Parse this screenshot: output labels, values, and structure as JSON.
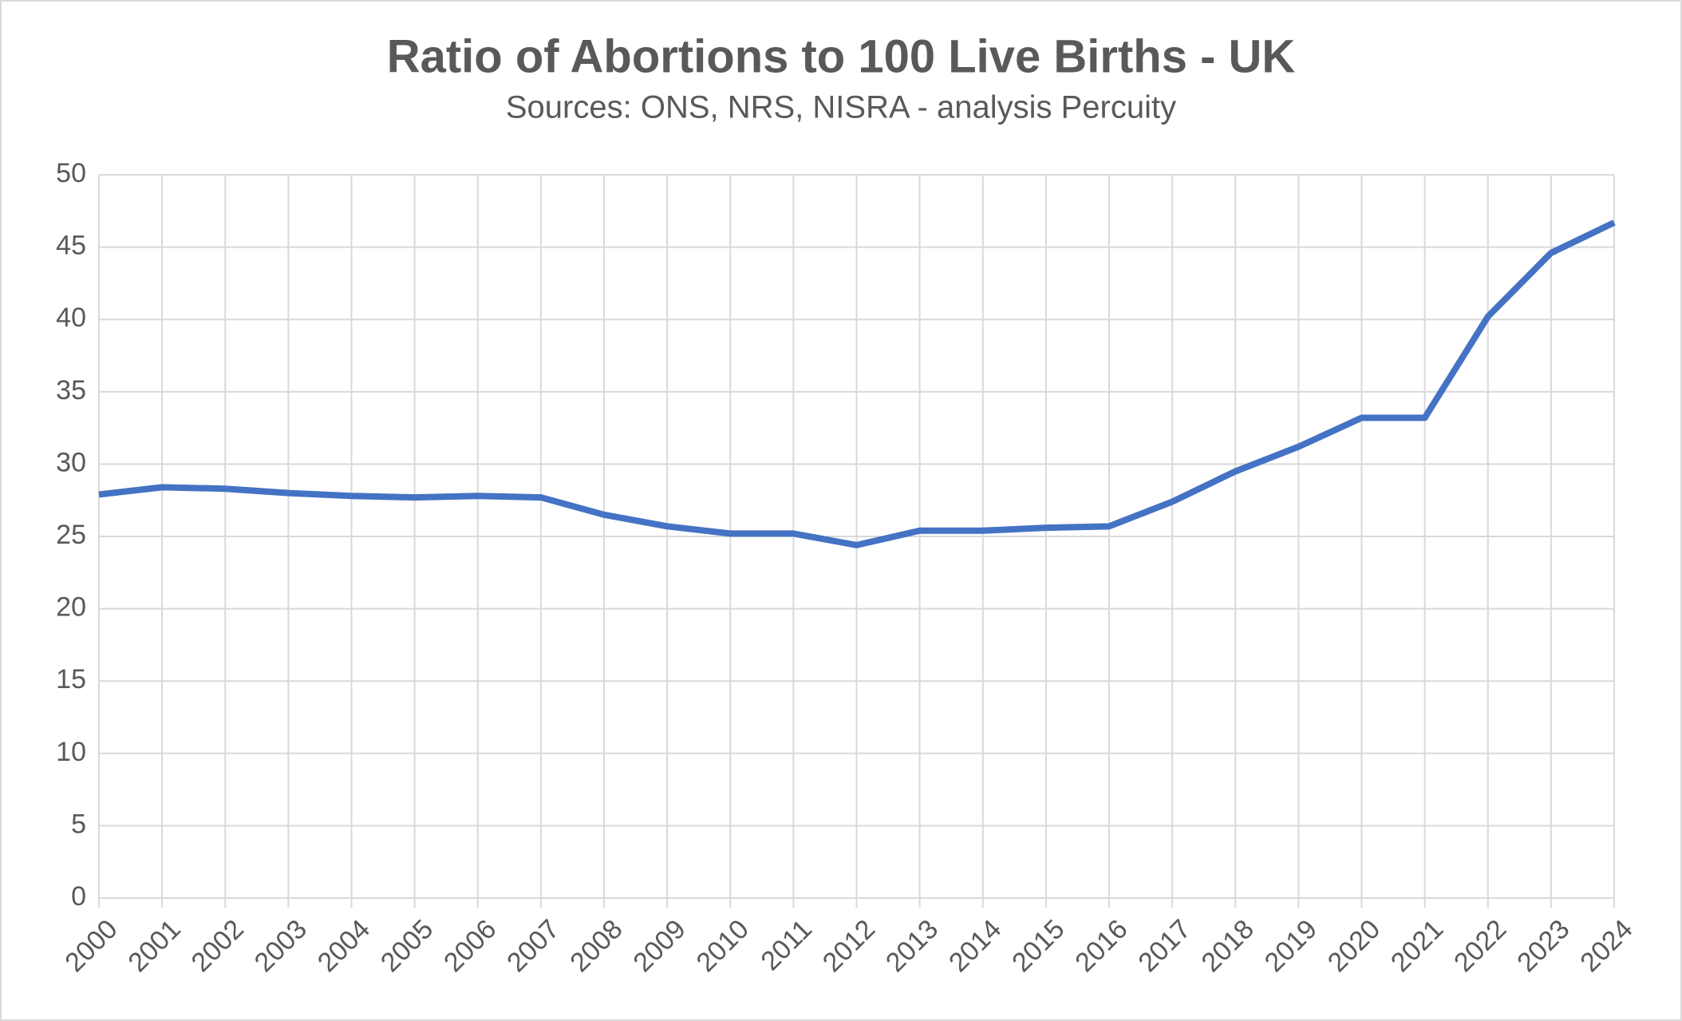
{
  "chart_data": {
    "type": "line",
    "title": "Ratio of Abortions to 100 Live Births - UK",
    "subtitle": "Sources: ONS, NRS, NISRA - analysis Percuity",
    "categories": [
      "2000",
      "2001",
      "2002",
      "2003",
      "2004",
      "2005",
      "2006",
      "2007",
      "2008",
      "2009",
      "2010",
      "2011",
      "2012",
      "2013",
      "2014",
      "2015",
      "2016",
      "2017",
      "2018",
      "2019",
      "2020",
      "2021",
      "2022",
      "2023",
      "2024"
    ],
    "series": [
      {
        "name": "Ratio",
        "color": "#4472c4",
        "values": [
          27.9,
          28.4,
          28.3,
          28.0,
          27.8,
          27.7,
          27.8,
          27.7,
          26.5,
          25.7,
          25.2,
          25.2,
          24.4,
          25.4,
          25.4,
          25.6,
          25.7,
          27.4,
          29.5,
          31.2,
          33.2,
          33.2,
          40.2,
          44.6,
          46.7
        ]
      }
    ],
    "ylim": [
      0,
      50
    ],
    "yticks": [
      0,
      5,
      10,
      15,
      20,
      25,
      30,
      35,
      40,
      45,
      50
    ],
    "grid": true
  }
}
